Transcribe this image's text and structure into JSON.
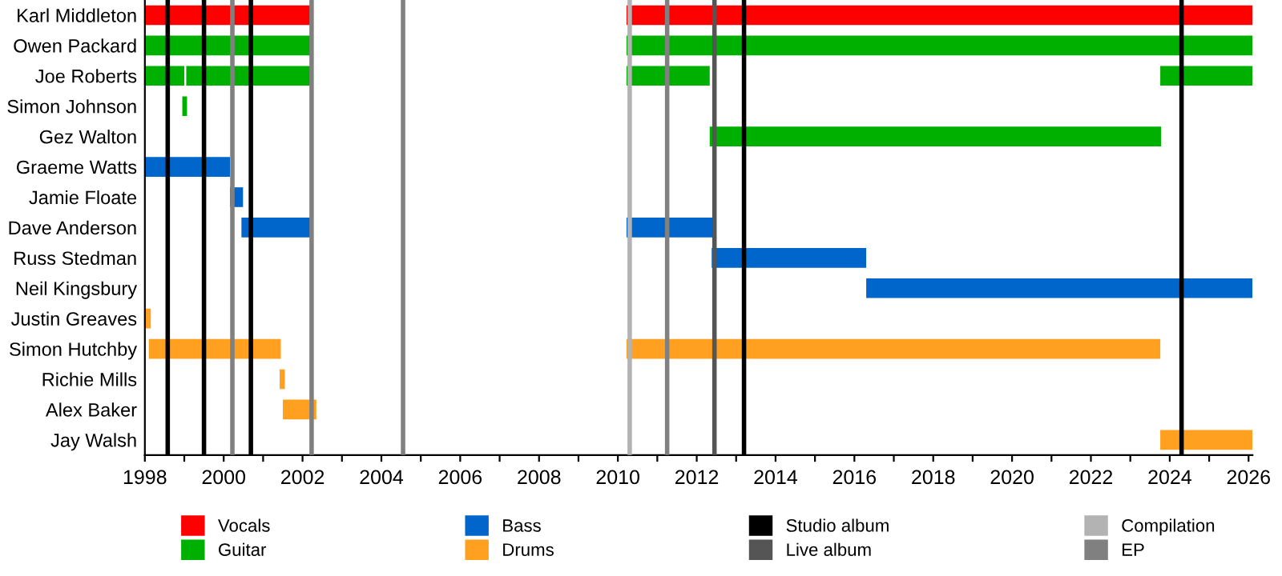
{
  "chart_data": {
    "type": "bar",
    "orientation": "horizontal",
    "categories": [
      "Karl Middleton",
      "Owen Packard",
      "Joe Roberts",
      "Simon Johnson",
      "Gez Walton",
      "Graeme Watts",
      "Jamie Floate",
      "Dave Anderson",
      "Russ Stedman",
      "Neil Kingsbury",
      "Justin Greaves",
      "Simon Hutchby",
      "Richie Mills",
      "Alex Baker",
      "Jay Walsh"
    ],
    "series": [
      {
        "name": "Vocals",
        "color": "#ff0000",
        "base": [
          1998,
          null,
          null,
          null,
          null,
          null,
          null,
          null,
          null,
          null,
          null,
          null,
          null,
          null,
          null
        ],
        "values": [
          4.23,
          null,
          null,
          null,
          null,
          null,
          null,
          null,
          null,
          null,
          null,
          null,
          null,
          null,
          null
        ]
      },
      {
        "color": "#ff0000",
        "base": [
          2010.22,
          null,
          null,
          null,
          null,
          null,
          null,
          null,
          null,
          null,
          null,
          null,
          null,
          null,
          null
        ],
        "values": [
          15.88,
          null,
          null,
          null,
          null,
          null,
          null,
          null,
          null,
          null,
          null,
          null,
          null,
          null,
          null
        ]
      },
      {
        "name": "Guitar",
        "color": "#00b000",
        "base": [
          null,
          1998,
          1998,
          1998.95,
          2012.33,
          null,
          null,
          null,
          null,
          null,
          null,
          null,
          null,
          null,
          null
        ],
        "values": [
          null,
          4.23,
          1.0,
          0.12,
          11.45,
          null,
          null,
          null,
          null,
          null,
          null,
          null,
          null,
          null,
          null
        ]
      },
      {
        "color": "#00b000",
        "base": [
          null,
          2010.22,
          1999.05,
          null,
          null,
          null,
          null,
          null,
          null,
          null,
          null,
          null,
          null,
          null,
          null
        ],
        "values": [
          null,
          15.88,
          3.18,
          null,
          null,
          null,
          null,
          null,
          null,
          null,
          null,
          null,
          null,
          null,
          null
        ]
      },
      {
        "color": "#00b000",
        "base": [
          null,
          null,
          2010.22,
          null,
          null,
          null,
          null,
          null,
          null,
          null,
          null,
          null,
          null,
          null,
          null
        ],
        "values": [
          null,
          null,
          2.11,
          null,
          null,
          null,
          null,
          null,
          null,
          null,
          null,
          null,
          null,
          null,
          null
        ]
      },
      {
        "color": "#00b000",
        "base": [
          null,
          null,
          2023.76,
          null,
          null,
          null,
          null,
          null,
          null,
          null,
          null,
          null,
          null,
          null,
          null
        ],
        "values": [
          null,
          null,
          2.34,
          null,
          null,
          null,
          null,
          null,
          null,
          null,
          null,
          null,
          null,
          null,
          null
        ]
      },
      {
        "name": "Bass",
        "color": "#0066cc",
        "base": [
          null,
          null,
          null,
          null,
          null,
          1998,
          2000.16,
          2000.45,
          2012.38,
          2016.3,
          null,
          null,
          null,
          null,
          null
        ],
        "values": [
          null,
          null,
          null,
          null,
          null,
          2.16,
          0.33,
          1.78,
          3.92,
          9.8,
          null,
          null,
          null,
          null,
          null
        ]
      },
      {
        "color": "#0066cc",
        "base": [
          null,
          null,
          null,
          null,
          null,
          null,
          null,
          2010.22,
          null,
          null,
          null,
          null,
          null,
          null,
          null
        ],
        "values": [
          null,
          null,
          null,
          null,
          null,
          null,
          null,
          2.19,
          null,
          null,
          null,
          null,
          null,
          null,
          null
        ]
      },
      {
        "name": "Drums",
        "color": "#ffa020",
        "base": [
          null,
          null,
          null,
          null,
          null,
          null,
          null,
          null,
          null,
          null,
          1998,
          1998.1,
          2001.42,
          2001.5,
          2023.76
        ],
        "values": [
          null,
          null,
          null,
          null,
          null,
          null,
          null,
          null,
          null,
          null,
          0.15,
          3.35,
          0.13,
          0.85,
          2.34
        ]
      },
      {
        "color": "#ffa020",
        "base": [
          null,
          null,
          null,
          null,
          null,
          null,
          null,
          null,
          null,
          null,
          null,
          2010.22,
          null,
          null,
          null
        ],
        "values": [
          null,
          null,
          null,
          null,
          null,
          null,
          null,
          null,
          null,
          null,
          null,
          13.54,
          null,
          null,
          null
        ]
      }
    ],
    "ref_lines": [
      {
        "axis": "x",
        "value": 1998.58,
        "label": "Studio album",
        "color": "#000000"
      },
      {
        "axis": "x",
        "value": 1999.5,
        "color": "#000000"
      },
      {
        "axis": "x",
        "value": 2000.69,
        "color": "#000000"
      },
      {
        "axis": "x",
        "value": 2013.2,
        "color": "#000000"
      },
      {
        "axis": "x",
        "value": 2024.3,
        "color": "#000000"
      },
      {
        "axis": "x",
        "value": 2012.45,
        "label": "Live album",
        "color": "#555555"
      },
      {
        "axis": "x",
        "value": 2010.3,
        "label": "Compilation",
        "color": "#b3b3b3"
      },
      {
        "axis": "x",
        "value": 2000.22,
        "label": "EP",
        "color": "#808080"
      },
      {
        "axis": "x",
        "value": 2002.23,
        "color": "#808080"
      },
      {
        "axis": "x",
        "value": 2004.55,
        "color": "#808080"
      },
      {
        "axis": "x",
        "value": 2011.25,
        "color": "#808080"
      }
    ],
    "xlim": [
      1998,
      2026.1
    ],
    "xticks": [
      1998,
      {
        "value": 1999,
        "label": null
      },
      2000,
      {
        "value": 2001,
        "label": null
      },
      2002,
      {
        "value": 2003,
        "label": null
      },
      2004,
      {
        "value": 2005,
        "label": null
      },
      2006,
      {
        "value": 2007,
        "label": null
      },
      2008,
      {
        "value": 2009,
        "label": null
      },
      2010,
      {
        "value": 2011,
        "label": null
      },
      2012,
      {
        "value": 2013,
        "label": null
      },
      2014,
      {
        "value": 2015,
        "label": null
      },
      2016,
      {
        "value": 2017,
        "label": null
      },
      2018,
      {
        "value": 2019,
        "label": null
      },
      2020,
      {
        "value": 2021,
        "label": null
      },
      2022,
      {
        "value": 2023,
        "label": null
      },
      2024,
      {
        "value": 2025,
        "label": null
      },
      2026
    ],
    "legend": "bottom",
    "grid": false
  }
}
